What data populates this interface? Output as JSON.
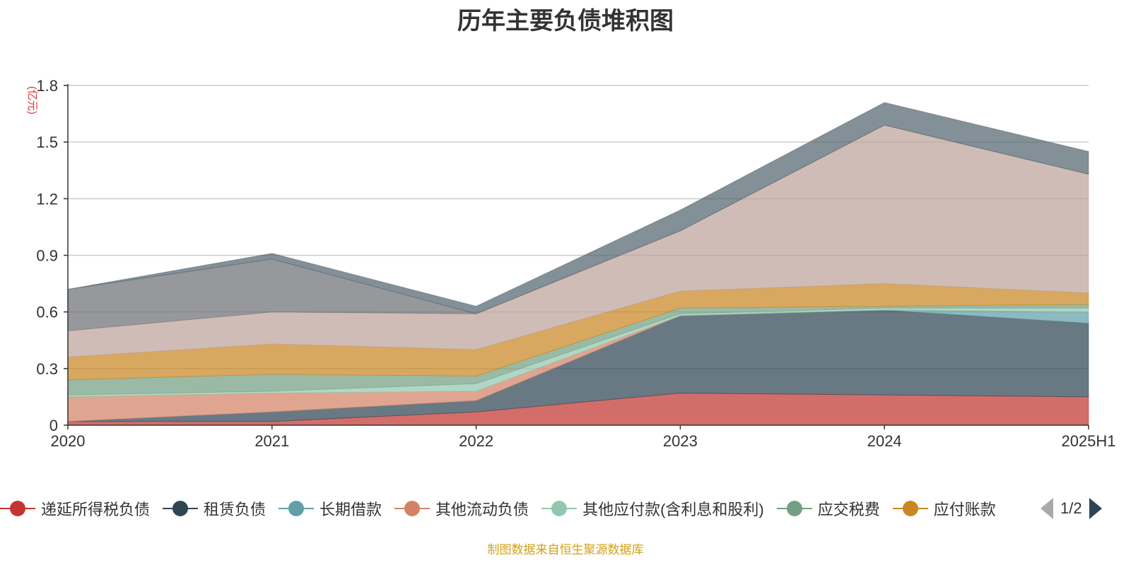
{
  "title": "历年主要负债堆积图",
  "unit_label": "(亿元)",
  "source_text": "制图数据来自恒生聚源数据库",
  "pager": {
    "text": "1/2"
  },
  "legend": [
    {
      "name": "递延所得税负债",
      "color": "#c23531"
    },
    {
      "name": "租赁负债",
      "color": "#2f4554"
    },
    {
      "name": "长期借款",
      "color": "#61a0a8"
    },
    {
      "name": "其他流动负债",
      "color": "#d48265"
    },
    {
      "name": "其他应付款(含利息和股利)",
      "color": "#91c7ae"
    },
    {
      "name": "应交税费",
      "color": "#749f83"
    },
    {
      "name": "应付账款",
      "color": "#ca8622"
    }
  ],
  "chart_data": {
    "type": "area",
    "stacked": true,
    "title": "历年主要负债堆积图",
    "ylabel": "(亿元)",
    "categories": [
      "2020",
      "2021",
      "2022",
      "2023",
      "2024",
      "2025H1"
    ],
    "ylim": [
      0,
      1.8
    ],
    "yticks": [
      0,
      0.3,
      0.6,
      0.9,
      1.2,
      1.5,
      1.8
    ],
    "ytick_labels": [
      "0",
      "0.3",
      "0.6",
      "0.9",
      "1.2",
      "1.5",
      "1.8"
    ],
    "grid": true,
    "series": [
      {
        "name": "递延所得税负债",
        "color": "#c23531",
        "values": [
          0.02,
          0.02,
          0.07,
          0.17,
          0.16,
          0.15
        ]
      },
      {
        "name": "租赁负债",
        "color": "#2f4554",
        "values": [
          0.0,
          0.05,
          0.06,
          0.41,
          0.45,
          0.39
        ]
      },
      {
        "name": "长期借款",
        "color": "#61a0a8",
        "values": [
          0.0,
          0.0,
          0.0,
          0.0,
          0.0,
          0.06
        ]
      },
      {
        "name": "其他流动负债",
        "color": "#d48265",
        "values": [
          0.13,
          0.1,
          0.05,
          0.0,
          0.0,
          0.0
        ]
      },
      {
        "name": "其他应付款(含利息和股利)",
        "color": "#91c7ae",
        "values": [
          0.01,
          0.01,
          0.04,
          0.01,
          0.01,
          0.02
        ]
      },
      {
        "name": "应交税费",
        "color": "#749f83",
        "values": [
          0.08,
          0.09,
          0.04,
          0.03,
          0.01,
          0.02
        ]
      },
      {
        "name": "应付账款",
        "color": "#ca8622",
        "values": [
          0.12,
          0.16,
          0.14,
          0.09,
          0.12,
          0.06
        ]
      },
      {
        "color": "#bda29a",
        "values": [
          0.14,
          0.17,
          0.19,
          0.32,
          0.84,
          0.63
        ]
      },
      {
        "color": "#6e7074",
        "values": [
          0.22,
          0.28,
          0.0,
          0.0,
          0.0,
          0.0
        ]
      },
      {
        "color": "#546570",
        "values": [
          0.0,
          0.03,
          0.04,
          0.11,
          0.12,
          0.12
        ]
      }
    ]
  }
}
